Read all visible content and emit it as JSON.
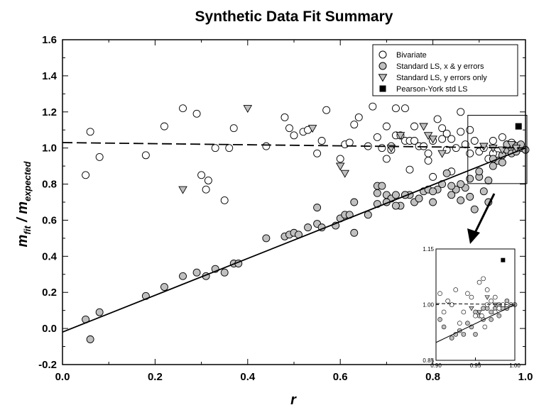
{
  "chart_data": {
    "type": "scatter",
    "title": "Synthetic Data Fit Summary",
    "xlabel": "r",
    "ylabel_main": "m",
    "ylabel_sub1": "fit",
    "ylabel_sep": " / m",
    "ylabel_sub2": "expected",
    "xlim": [
      0.0,
      1.0
    ],
    "ylim": [
      -0.2,
      1.6
    ],
    "x_ticks": [
      "0.0",
      "0.2",
      "0.4",
      "0.6",
      "0.8",
      "1.0"
    ],
    "y_ticks": [
      "-0.2",
      "0.0",
      "0.2",
      "0.4",
      "0.6",
      "0.8",
      "1.0",
      "1.2",
      "1.4",
      "1.6"
    ],
    "legend_position": "top-right",
    "legend": [
      {
        "label": "Bivariate",
        "marker": "open-circle"
      },
      {
        "label": "Standard LS, x & y errors",
        "marker": "gray-circle"
      },
      {
        "label": "Standard LS, y errors only",
        "marker": "gray-triangle-down"
      },
      {
        "label": "Pearson-York std LS",
        "marker": "black-square"
      }
    ],
    "colors": {
      "gray_fill": "#c0c0c0",
      "open_fill": "#ffffff",
      "line": "#000000"
    },
    "series": [
      {
        "name": "Bivariate",
        "points": [
          [
            0.05,
            0.85
          ],
          [
            0.06,
            1.09
          ],
          [
            0.08,
            0.95
          ],
          [
            0.18,
            0.96
          ],
          [
            0.22,
            1.12
          ],
          [
            0.26,
            1.22
          ],
          [
            0.29,
            1.19
          ],
          [
            0.3,
            0.85
          ],
          [
            0.31,
            0.77
          ],
          [
            0.315,
            0.82
          ],
          [
            0.33,
            1.0
          ],
          [
            0.35,
            0.71
          ],
          [
            0.36,
            1.0
          ],
          [
            0.37,
            1.11
          ],
          [
            0.44,
            1.01
          ],
          [
            0.48,
            1.17
          ],
          [
            0.49,
            1.11
          ],
          [
            0.5,
            1.07
          ],
          [
            0.52,
            1.09
          ],
          [
            0.53,
            1.1
          ],
          [
            0.55,
            0.97
          ],
          [
            0.56,
            1.04
          ],
          [
            0.57,
            1.21
          ],
          [
            0.6,
            0.94
          ],
          [
            0.61,
            1.02
          ],
          [
            0.62,
            1.03
          ],
          [
            0.63,
            1.13
          ],
          [
            0.64,
            1.17
          ],
          [
            0.66,
            1.01
          ],
          [
            0.67,
            1.23
          ],
          [
            0.68,
            1.06
          ],
          [
            0.69,
            1.0
          ],
          [
            0.7,
            0.94
          ],
          [
            0.71,
            1.01
          ],
          [
            0.72,
            1.07
          ],
          [
            0.73,
            1.07
          ],
          [
            0.74,
            1.04
          ],
          [
            0.75,
            1.04
          ],
          [
            0.76,
            1.04
          ],
          [
            0.77,
            1.01
          ],
          [
            0.78,
            1.01
          ],
          [
            0.79,
            0.97
          ],
          [
            0.8,
            1.04
          ],
          [
            0.81,
            1.16
          ],
          [
            0.82,
            1.11
          ],
          [
            0.83,
            0.99
          ],
          [
            0.84,
            1.05
          ],
          [
            0.85,
            1.0
          ],
          [
            0.86,
            1.2
          ],
          [
            0.87,
            1.02
          ],
          [
            0.88,
            0.97
          ],
          [
            0.89,
            1.04
          ],
          [
            0.9,
            0.98
          ],
          [
            0.91,
            1.0
          ],
          [
            0.92,
            0.94
          ],
          [
            0.93,
            1.04
          ],
          [
            0.94,
            0.96
          ],
          [
            0.95,
            1.06
          ],
          [
            0.96,
            1.02
          ],
          [
            0.97,
            1.02
          ],
          [
            0.98,
            1.01
          ],
          [
            0.99,
            1.0
          ],
          [
            0.72,
            1.22
          ],
          [
            0.74,
            1.22
          ],
          [
            0.82,
            1.05
          ],
          [
            0.86,
            1.09
          ],
          [
            0.79,
            0.93
          ],
          [
            0.76,
            1.12
          ],
          [
            0.75,
            0.88
          ],
          [
            0.8,
            0.84
          ],
          [
            0.84,
            0.87
          ],
          [
            0.7,
            1.12
          ],
          [
            0.71,
            0.99
          ],
          [
            0.83,
            1.08
          ],
          [
            0.88,
            1.1
          ],
          [
            0.96,
            0.98
          ],
          [
            0.93,
            0.97
          ],
          [
            0.97,
            1.03
          ]
        ]
      },
      {
        "name": "Standard LS, x & y errors",
        "points": [
          [
            0.05,
            0.05
          ],
          [
            0.06,
            -0.06
          ],
          [
            0.08,
            0.09
          ],
          [
            0.18,
            0.18
          ],
          [
            0.22,
            0.23
          ],
          [
            0.26,
            0.29
          ],
          [
            0.29,
            0.31
          ],
          [
            0.31,
            0.29
          ],
          [
            0.33,
            0.33
          ],
          [
            0.35,
            0.31
          ],
          [
            0.37,
            0.36
          ],
          [
            0.38,
            0.36
          ],
          [
            0.44,
            0.5
          ],
          [
            0.48,
            0.51
          ],
          [
            0.49,
            0.52
          ],
          [
            0.5,
            0.53
          ],
          [
            0.51,
            0.52
          ],
          [
            0.53,
            0.56
          ],
          [
            0.55,
            0.67
          ],
          [
            0.55,
            0.58
          ],
          [
            0.56,
            0.56
          ],
          [
            0.59,
            0.57
          ],
          [
            0.6,
            0.61
          ],
          [
            0.61,
            0.63
          ],
          [
            0.62,
            0.63
          ],
          [
            0.63,
            0.7
          ],
          [
            0.63,
            0.53
          ],
          [
            0.66,
            0.63
          ],
          [
            0.68,
            0.79
          ],
          [
            0.68,
            0.75
          ],
          [
            0.69,
            0.79
          ],
          [
            0.7,
            0.74
          ],
          [
            0.71,
            0.72
          ],
          [
            0.72,
            0.74
          ],
          [
            0.73,
            0.68
          ],
          [
            0.74,
            0.74
          ],
          [
            0.75,
            0.74
          ],
          [
            0.76,
            0.7
          ],
          [
            0.77,
            0.72
          ],
          [
            0.78,
            0.76
          ],
          [
            0.79,
            0.77
          ],
          [
            0.8,
            0.7
          ],
          [
            0.81,
            0.77
          ],
          [
            0.82,
            0.8
          ],
          [
            0.83,
            0.86
          ],
          [
            0.84,
            0.74
          ],
          [
            0.85,
            0.77
          ],
          [
            0.86,
            0.71
          ],
          [
            0.87,
            0.78
          ],
          [
            0.88,
            0.73
          ],
          [
            0.89,
            0.66
          ],
          [
            0.9,
            0.84
          ],
          [
            0.91,
            0.76
          ],
          [
            0.92,
            0.7
          ],
          [
            0.93,
            0.9
          ],
          [
            0.94,
            0.93
          ],
          [
            0.95,
            0.96
          ],
          [
            0.96,
            0.99
          ],
          [
            0.97,
            1.0
          ],
          [
            0.98,
            1.01
          ],
          [
            0.99,
            1.0
          ],
          [
            1.0,
            0.99
          ],
          [
            0.68,
            0.69
          ],
          [
            0.7,
            0.7
          ],
          [
            0.8,
            0.76
          ],
          [
            0.84,
            0.79
          ],
          [
            0.86,
            0.8
          ],
          [
            0.88,
            0.83
          ],
          [
            0.9,
            0.87
          ],
          [
            0.92,
            0.82
          ],
          [
            0.93,
            0.94
          ],
          [
            0.95,
            0.92
          ],
          [
            0.96,
            1.02
          ],
          [
            0.97,
            0.97
          ],
          [
            0.98,
            0.98
          ],
          [
            0.99,
            1.02
          ],
          [
            0.72,
            0.68
          ],
          [
            0.74,
            0.74
          ]
        ]
      },
      {
        "name": "Standard LS, y errors only",
        "points": [
          [
            0.26,
            0.77
          ],
          [
            0.4,
            1.22
          ],
          [
            0.54,
            1.11
          ],
          [
            0.6,
            0.9
          ],
          [
            0.61,
            0.86
          ],
          [
            0.71,
            1.0
          ],
          [
            0.73,
            1.07
          ],
          [
            0.78,
            1.12
          ],
          [
            0.79,
            1.07
          ],
          [
            0.8,
            1.05
          ],
          [
            0.82,
            0.97
          ],
          [
            0.91,
            1.01
          ],
          [
            0.93,
            1.0
          ],
          [
            0.95,
            0.99
          ],
          [
            0.97,
            1.02
          ],
          [
            0.98,
            1.0
          ]
        ]
      },
      {
        "name": "Pearson-York std LS",
        "points": [
          [
            0.985,
            1.12
          ]
        ]
      }
    ],
    "fit_lines": [
      {
        "style": "dashed",
        "x": [
          0.0,
          1.0
        ],
        "y": [
          1.03,
          1.0
        ]
      },
      {
        "style": "solid",
        "x": [
          0.0,
          1.0
        ],
        "y": [
          -0.02,
          1.0
        ]
      }
    ],
    "inset": {
      "xlim": [
        0.9,
        1.0
      ],
      "ylim": [
        0.85,
        1.15
      ],
      "x_ticks": [
        "0.90",
        "0.95",
        "1.00"
      ],
      "y_ticks": [
        "0.85",
        "1.00",
        "1.15"
      ],
      "bivariate": [
        [
          0.905,
          1.03
        ],
        [
          0.91,
          0.98
        ],
        [
          0.915,
          1.01
        ],
        [
          0.92,
          1.0
        ],
        [
          0.925,
          1.04
        ],
        [
          0.93,
          0.95
        ],
        [
          0.935,
          0.98
        ],
        [
          0.94,
          1.03
        ],
        [
          0.945,
          1.02
        ],
        [
          0.95,
          0.97
        ],
        [
          0.955,
          1.06
        ],
        [
          0.96,
          1.07
        ],
        [
          0.965,
          1.04
        ],
        [
          0.97,
          1.01
        ],
        [
          0.975,
          1.02
        ],
        [
          0.98,
          0.99
        ],
        [
          0.985,
          1.0
        ],
        [
          0.99,
          1.0
        ],
        [
          0.962,
          0.94
        ],
        [
          0.958,
          0.97
        ],
        [
          0.975,
          0.98
        ],
        [
          0.965,
          1.0
        ]
      ],
      "gray": [
        [
          0.905,
          0.96
        ],
        [
          0.91,
          0.94
        ],
        [
          0.92,
          0.91
        ],
        [
          0.925,
          0.92
        ],
        [
          0.93,
          0.93
        ],
        [
          0.935,
          0.92
        ],
        [
          0.94,
          0.95
        ],
        [
          0.945,
          0.94
        ],
        [
          0.95,
          0.98
        ],
        [
          0.955,
          0.97
        ],
        [
          0.96,
          0.96
        ],
        [
          0.965,
          0.99
        ],
        [
          0.97,
          0.98
        ],
        [
          0.975,
          0.99
        ],
        [
          0.98,
          1.0
        ],
        [
          0.985,
          0.99
        ],
        [
          0.99,
          0.99
        ],
        [
          0.995,
          1.0
        ],
        [
          1.0,
          1.0
        ],
        [
          0.97,
          0.96
        ],
        [
          0.98,
          0.97
        ],
        [
          0.99,
          1.01
        ],
        [
          0.96,
          0.99
        ],
        [
          0.95,
          0.92
        ]
      ],
      "triangles": [
        [
          0.945,
          0.99
        ],
        [
          0.955,
          0.98
        ],
        [
          0.965,
          1.02
        ],
        [
          0.975,
          1.0
        ]
      ],
      "square": [
        [
          0.985,
          1.12
        ]
      ]
    }
  }
}
